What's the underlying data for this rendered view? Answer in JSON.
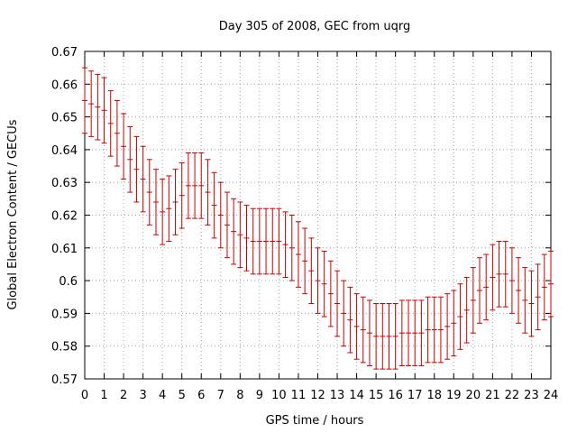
{
  "chart_data": {
    "type": "scatter",
    "title": "Day 305 of 2008, GEC from uqrg",
    "xlabel": "GPS time / hours",
    "ylabel": "Global Electron Content / GECUs",
    "xlim": [
      0,
      24
    ],
    "ylim": [
      0.57,
      0.67
    ],
    "grid": true,
    "series_color": "#cc0000",
    "xticks": [
      "0",
      "1",
      "2",
      "3",
      "4",
      "5",
      "6",
      "7",
      "8",
      "9",
      "10",
      "11",
      "12",
      "13",
      "14",
      "15",
      "16",
      "17",
      "18",
      "19",
      "20",
      "21",
      "22",
      "23",
      "24"
    ],
    "yticks": [
      "0.57",
      "0.58",
      "0.59",
      "0.6",
      "0.61",
      "0.62",
      "0.63",
      "0.64",
      "0.65",
      "0.66",
      "0.67"
    ],
    "series": [
      {
        "name": "GEC",
        "error": 0.01,
        "x": [
          0,
          0.333,
          0.667,
          1,
          1.333,
          1.667,
          2,
          2.333,
          2.667,
          3,
          3.333,
          3.667,
          4,
          4.333,
          4.667,
          5,
          5.333,
          5.667,
          6,
          6.333,
          6.667,
          7,
          7.333,
          7.667,
          8,
          8.333,
          8.667,
          9,
          9.333,
          9.667,
          10,
          10.333,
          10.667,
          11,
          11.333,
          11.667,
          12,
          12.333,
          12.667,
          13,
          13.333,
          13.667,
          14,
          14.333,
          14.667,
          15,
          15.333,
          15.667,
          16,
          16.333,
          16.667,
          17,
          17.333,
          17.667,
          18,
          18.333,
          18.667,
          19,
          19.333,
          19.667,
          20,
          20.333,
          20.667,
          21,
          21.333,
          21.667,
          22,
          22.333,
          22.667,
          23,
          23.333,
          23.667,
          24
        ],
        "y": [
          0.655,
          0.654,
          0.653,
          0.652,
          0.648,
          0.645,
          0.641,
          0.637,
          0.634,
          0.631,
          0.627,
          0.624,
          0.621,
          0.622,
          0.624,
          0.626,
          0.629,
          0.629,
          0.629,
          0.627,
          0.623,
          0.62,
          0.617,
          0.615,
          0.614,
          0.613,
          0.612,
          0.612,
          0.612,
          0.612,
          0.612,
          0.611,
          0.61,
          0.608,
          0.606,
          0.603,
          0.6,
          0.599,
          0.596,
          0.593,
          0.59,
          0.588,
          0.586,
          0.585,
          0.584,
          0.583,
          0.583,
          0.583,
          0.583,
          0.584,
          0.584,
          0.584,
          0.584,
          0.585,
          0.585,
          0.585,
          0.586,
          0.587,
          0.589,
          0.591,
          0.594,
          0.597,
          0.598,
          0.601,
          0.602,
          0.602,
          0.6,
          0.597,
          0.594,
          0.593,
          0.595,
          0.598,
          0.599
        ]
      }
    ]
  }
}
